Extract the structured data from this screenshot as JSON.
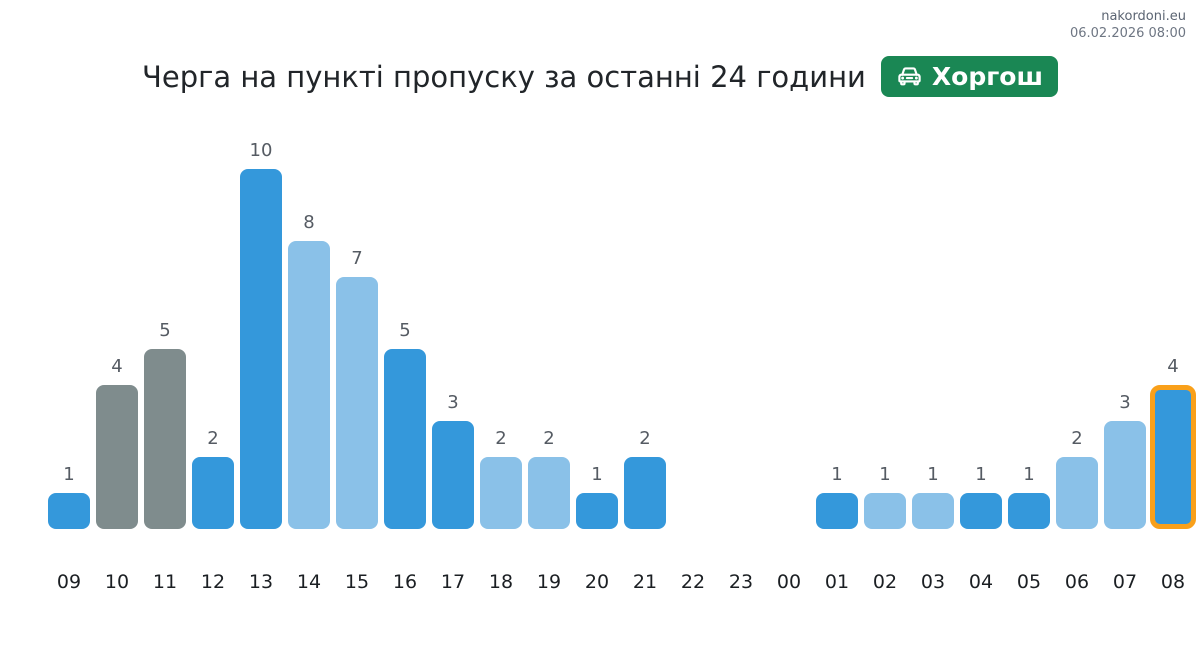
{
  "meta": {
    "site": "nakordoni.eu",
    "datetime": "06.02.2026 08:00"
  },
  "title": "Черга на пункті пропуску за останні 24 години",
  "badge": {
    "label": "Хоргош"
  },
  "colors": {
    "bar_blue": "#3498db",
    "bar_light": "#8ac1e8",
    "bar_gray": "#7f8c8d",
    "highlight": "#f9a01a",
    "badge_bg": "#1a8754",
    "value_label": "#555b63",
    "axis_label": "#1b1f23",
    "meta_text": "#5b6472"
  },
  "chart_data": {
    "type": "bar",
    "title": "Черга на пункті пропуску за останні 24 години",
    "xlabel": "",
    "ylabel": "",
    "categories": [
      "09",
      "10",
      "11",
      "12",
      "13",
      "14",
      "15",
      "16",
      "17",
      "18",
      "19",
      "20",
      "21",
      "22",
      "23",
      "00",
      "01",
      "02",
      "03",
      "04",
      "05",
      "06",
      "07",
      "08"
    ],
    "values": [
      1,
      4,
      5,
      2,
      10,
      8,
      7,
      5,
      3,
      2,
      2,
      1,
      2,
      0,
      0,
      0,
      1,
      1,
      1,
      1,
      1,
      2,
      3,
      4
    ],
    "bar_styles": [
      "blue",
      "gray",
      "gray",
      "blue",
      "blue",
      "light",
      "light",
      "blue",
      "blue",
      "light",
      "light",
      "blue",
      "blue",
      "none",
      "none",
      "none",
      "blue",
      "light",
      "light",
      "blue",
      "blue",
      "light",
      "light",
      "blue"
    ],
    "highlighted_category": "08",
    "ylim": [
      0,
      10
    ],
    "grid": false,
    "legend": false,
    "value_labels_shown": true
  }
}
